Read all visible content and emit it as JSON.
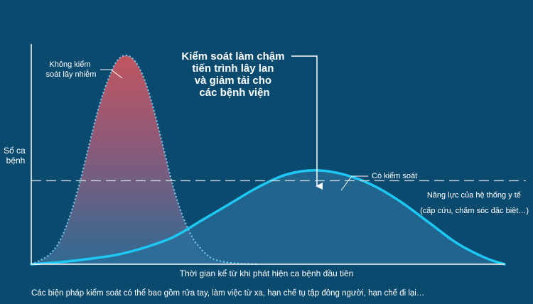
{
  "chart_data": {
    "type": "area",
    "xlabel": "Thời gian kể từ khi phát hiện ca bệnh đầu tiên",
    "ylabel": [
      "Số ca",
      "bệnh"
    ],
    "series": [
      {
        "name": [
          "Không kiểm",
          "soát lây nhiễm"
        ],
        "style": "dotted",
        "x": [
          0,
          2,
          4,
          6,
          8,
          10,
          12,
          14,
          16,
          18,
          20,
          22,
          24,
          26,
          28,
          30,
          32,
          34,
          36,
          38,
          40,
          42,
          44,
          46,
          48
        ],
        "values": [
          0,
          2,
          5,
          11,
          22,
          37,
          55,
          73,
          87,
          97,
          100,
          97,
          88,
          73,
          55,
          37,
          23,
          13,
          7,
          3,
          1.5,
          0.7,
          0.3,
          0.1,
          0
        ]
      },
      {
        "name": "Có kiểm soát",
        "style": "solid",
        "x": [
          0,
          6,
          12,
          18,
          24,
          30,
          36,
          42,
          48,
          54,
          60,
          66,
          72,
          78,
          84,
          90,
          96,
          100
        ],
        "values": [
          0,
          1,
          2.5,
          4.5,
          8,
          13,
          21,
          29,
          37,
          43,
          45,
          43,
          38,
          30,
          20,
          10,
          3,
          0
        ]
      }
    ],
    "threshold": {
      "value": 40,
      "label": [
        "Năng lực của hệ thống y tế",
        "(cấp cứu, chăm sóc đặc biệt…)"
      ]
    },
    "annotation": {
      "text": [
        "Kiểm soát làm chậm",
        "tiến trình lây lan",
        "và giảm tải cho",
        "các bệnh viện"
      ]
    },
    "xlim": [
      0,
      100
    ],
    "ylim": [
      0,
      100
    ],
    "grid": false,
    "legend": "none"
  },
  "footnote": "Các biện pháp kiểm soát có thể bao gồm rửa tay, làm việc từ xa, hạn chế tụ tập đông người, hạn chế đi lại…",
  "colors": {
    "background": "#0b4a6f",
    "controlled_line": "#1ec8f5",
    "uncontrolled_top": "#c0565f",
    "uncontrolled_bottom": "#2f6a93",
    "axis": "#ffffff"
  }
}
